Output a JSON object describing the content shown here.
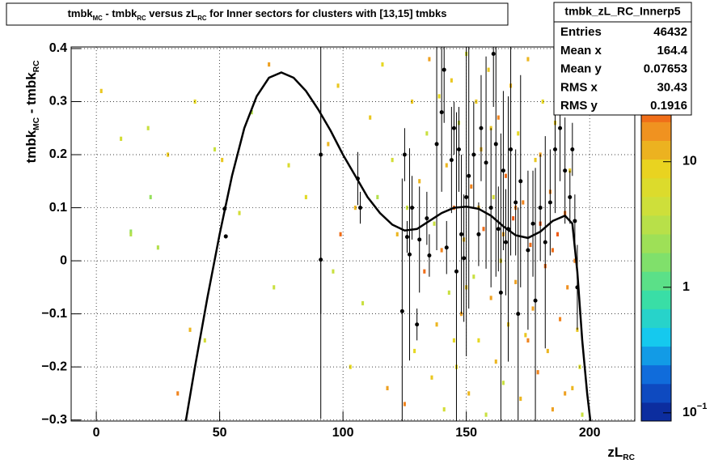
{
  "chart_data": {
    "type": "heatmap",
    "title_parts": [
      {
        "text": "tmbk"
      },
      {
        "sub": "MC"
      },
      {
        "text": " - tmbk"
      },
      {
        "sub": "RC"
      },
      {
        "text": " versus zL"
      },
      {
        "sub": "RC"
      },
      {
        "text": " for Inner sectors for clusters with [13,15] tmbks"
      }
    ],
    "x_label_parts": [
      {
        "text": "zL"
      },
      {
        "sub": "RC"
      }
    ],
    "y_label_parts": [
      {
        "text": "tmbk"
      },
      {
        "sub": "MC"
      },
      {
        "text": " - tmbk"
      },
      {
        "sub": "RC"
      }
    ],
    "xlim": [
      -10.2,
      218.3
    ],
    "xticks": [
      0,
      50,
      100,
      150,
      200
    ],
    "ylim": [
      -0.302,
      0.403
    ],
    "yticks": [
      {
        "value": -0.3,
        "label": "−0.3"
      },
      {
        "value": -0.2,
        "label": "−0.2"
      },
      {
        "value": -0.1,
        "label": "−0.1"
      },
      0,
      0.1,
      0.2,
      0.3,
      0.4
    ],
    "zlim": [
      0.086,
      82
    ],
    "zticks": [
      {
        "value": 0.1,
        "label": "10",
        "sup": "−1"
      },
      1,
      10
    ],
    "log_z": true,
    "grid": true,
    "palette": [
      "#0b1f8e",
      "#0f5fd8",
      "#14c8f0",
      "#3ce0a0",
      "#8ee060",
      "#c8e040",
      "#e8d820",
      "#f09020",
      "#f04010",
      "#e01010"
    ],
    "cells": [
      [
        2,
        0.32,
        10
      ],
      [
        10,
        0.23,
        5
      ],
      [
        14,
        0.055,
        2
      ],
      [
        14,
        0.05,
        3
      ],
      [
        21,
        0.25,
        4
      ],
      [
        22,
        0.12,
        2
      ],
      [
        25,
        0.025,
        3
      ],
      [
        29,
        0.2,
        10
      ],
      [
        33,
        -0.25,
        20
      ],
      [
        38,
        -0.13,
        12
      ],
      [
        40,
        0.3,
        8
      ],
      [
        44,
        -0.15,
        5
      ],
      [
        48,
        0.21,
        4
      ],
      [
        51,
        0.19,
        10
      ],
      [
        58,
        0.09,
        5
      ],
      [
        63,
        0.28,
        3
      ],
      [
        70,
        0.37,
        15
      ],
      [
        72,
        -0.05,
        4
      ],
      [
        78,
        0.18,
        6
      ],
      [
        85,
        0.12,
        7
      ],
      [
        94,
        0.22,
        12
      ],
      [
        96,
        -0.02,
        4
      ],
      [
        98,
        0.33,
        10
      ],
      [
        99,
        0.05,
        25
      ],
      [
        103,
        -0.2,
        8
      ],
      [
        105,
        0.1,
        12
      ],
      [
        108,
        -0.08,
        4
      ],
      [
        111,
        0.27,
        10
      ],
      [
        114,
        0.12,
        3
      ],
      [
        116,
        0.37,
        8
      ],
      [
        118,
        -0.24,
        15
      ],
      [
        120,
        0.19,
        5
      ],
      [
        122,
        0.05,
        12
      ],
      [
        125,
        -0.27,
        20
      ],
      [
        126,
        0.1,
        4
      ],
      [
        128,
        0.3,
        10
      ],
      [
        129,
        -0.17,
        8
      ],
      [
        131,
        0.15,
        12
      ],
      [
        133,
        -0.02,
        25
      ],
      [
        134,
        0.24,
        4
      ],
      [
        135,
        0.38,
        15
      ],
      [
        136,
        -0.22,
        10
      ],
      [
        137,
        0.07,
        4
      ],
      [
        138,
        -0.12,
        12
      ],
      [
        139,
        0.31,
        8
      ],
      [
        140,
        0.02,
        20
      ],
      [
        141,
        -0.28,
        5
      ],
      [
        142,
        0.18,
        12
      ],
      [
        143,
        -0.06,
        4
      ],
      [
        144,
        0.34,
        10
      ],
      [
        145,
        0.1,
        25
      ],
      [
        146,
        -0.2,
        8
      ],
      [
        147,
        0.26,
        4
      ],
      [
        148,
        -0.1,
        15
      ],
      [
        149,
        0.04,
        12
      ],
      [
        150,
        0.39,
        5
      ],
      [
        151,
        -0.25,
        12
      ],
      [
        152,
        0.14,
        20
      ],
      [
        153,
        -0.03,
        4
      ],
      [
        154,
        0.3,
        10
      ],
      [
        155,
        -0.15,
        8
      ],
      [
        156,
        0.21,
        12
      ],
      [
        157,
        0.06,
        25
      ],
      [
        158,
        -0.29,
        4
      ],
      [
        159,
        0.36,
        10
      ],
      [
        160,
        -0.07,
        15
      ],
      [
        161,
        0.12,
        5
      ],
      [
        162,
        -0.19,
        12
      ],
      [
        163,
        0.27,
        20
      ],
      [
        164,
        0.0,
        8
      ],
      [
        165,
        -0.23,
        4
      ],
      [
        166,
        0.16,
        25
      ],
      [
        167,
        -0.12,
        10
      ],
      [
        168,
        0.33,
        12
      ],
      [
        169,
        0.08,
        30
      ],
      [
        170,
        -0.04,
        15
      ],
      [
        171,
        0.24,
        8
      ],
      [
        172,
        -0.26,
        12
      ],
      [
        173,
        0.11,
        20
      ],
      [
        174,
        -0.14,
        10
      ],
      [
        175,
        0.38,
        12
      ],
      [
        176,
        0.03,
        25
      ],
      [
        177,
        -0.09,
        15
      ],
      [
        178,
        0.19,
        10
      ],
      [
        179,
        -0.21,
        20
      ],
      [
        180,
        0.07,
        30
      ],
      [
        181,
        0.3,
        8
      ],
      [
        182,
        -0.01,
        25
      ],
      [
        183,
        -0.17,
        12
      ],
      [
        184,
        0.13,
        20
      ],
      [
        185,
        -0.28,
        15
      ],
      [
        186,
        0.26,
        10
      ],
      [
        187,
        0.05,
        30
      ],
      [
        188,
        -0.11,
        20
      ],
      [
        189,
        0.35,
        12
      ],
      [
        190,
        0.09,
        25
      ],
      [
        191,
        -0.05,
        18
      ],
      [
        192,
        0.17,
        10
      ],
      [
        193,
        -0.24,
        12
      ],
      [
        194,
        0.0,
        20
      ],
      [
        195,
        -0.13,
        10
      ],
      [
        196,
        -0.2,
        6
      ],
      [
        197,
        -0.29,
        4
      ],
      [
        165,
        0.05,
        15
      ],
      [
        170,
        0.1,
        20
      ],
      [
        175,
        -0.15,
        20
      ],
      [
        180,
        0.2,
        15
      ],
      [
        185,
        0.02,
        25
      ],
      [
        160,
        0.25,
        10
      ],
      [
        155,
        0.1,
        12
      ],
      [
        150,
        -0.05,
        10
      ],
      [
        145,
        -0.15,
        8
      ],
      [
        190,
        -0.25,
        15
      ]
    ],
    "profile": {
      "color": "#000000",
      "points": [
        [
          52,
          0.098,
          0.005
        ],
        [
          52.5,
          0.046,
          0.004
        ],
        [
          91,
          0.2,
          0.3
        ],
        [
          91,
          0.002,
          0.3
        ],
        [
          106,
          0.155,
          0.05
        ],
        [
          107,
          0.1,
          0.03
        ],
        [
          124,
          -0.095,
          0.25
        ],
        [
          125,
          0.2,
          0.05
        ],
        [
          126,
          0.045,
          0.03
        ],
        [
          127,
          0.012,
          0.2
        ],
        [
          128,
          0.1,
          0.06
        ],
        [
          130,
          -0.12,
          0.03
        ],
        [
          131,
          0.04,
          0.1
        ],
        [
          134,
          0.08,
          0.05
        ],
        [
          135,
          0.01,
          0.04
        ],
        [
          138,
          0.22,
          0.2
        ],
        [
          140,
          0.28,
          0.15
        ],
        [
          141,
          0.36,
          0.1
        ],
        [
          142,
          0.025,
          0.05
        ],
        [
          144,
          0.19,
          0.1
        ],
        [
          145,
          0.25,
          0.05
        ],
        [
          146,
          -0.02,
          0.3
        ],
        [
          147,
          0.21,
          0.08
        ],
        [
          148,
          0.05,
          0.15
        ],
        [
          149,
          0.005,
          0.12
        ],
        [
          150,
          0.12,
          0.3
        ],
        [
          151,
          0.16,
          0.25
        ],
        [
          153,
          0.2,
          0.1
        ],
        [
          155,
          0.05,
          0.06
        ],
        [
          156,
          0.25,
          0.1
        ],
        [
          158,
          0.185,
          0.2
        ],
        [
          160,
          0.1,
          0.15
        ],
        [
          161,
          0.39,
          0.1
        ],
        [
          162,
          0.22,
          0.25
        ],
        [
          163,
          0.06,
          0.08
        ],
        [
          164,
          -0.06,
          0.3
        ],
        [
          165,
          0.17,
          0.15
        ],
        [
          166,
          0.035,
          0.1
        ],
        [
          167,
          0.06,
          0.25
        ],
        [
          168,
          0.21,
          0.2
        ],
        [
          170,
          0.11,
          0.1
        ],
        [
          171,
          -0.1,
          0.2
        ],
        [
          172,
          0.15,
          0.2
        ],
        [
          175,
          0.02,
          0.15
        ],
        [
          177,
          0.07,
          0.1
        ],
        [
          178,
          -0.075,
          0.25
        ],
        [
          180,
          0.1,
          0.1
        ],
        [
          182,
          0.035,
          0.2
        ],
        [
          184,
          0.11,
          0.1
        ],
        [
          186,
          0.21,
          0.12
        ],
        [
          188,
          0.25,
          0.1
        ],
        [
          190,
          0.17,
          0.1
        ],
        [
          191,
          0.38,
          0.05
        ],
        [
          192,
          0.12,
          0.05
        ],
        [
          193,
          0.21,
          0.05
        ],
        [
          194,
          0.075,
          0.05
        ],
        [
          195,
          -0.05,
          0.08
        ]
      ]
    },
    "fit": {
      "color": "#000000",
      "x": [
        36,
        40,
        45,
        50,
        55,
        60,
        65,
        70,
        75,
        80,
        85,
        90,
        95,
        100,
        105,
        110,
        115,
        120,
        125,
        130,
        135,
        140,
        145,
        150,
        155,
        160,
        165,
        170,
        175,
        180,
        185,
        190,
        193,
        195,
        197,
        199,
        200.5
      ],
      "y": [
        -0.31,
        -0.2,
        -0.07,
        0.05,
        0.16,
        0.25,
        0.31,
        0.345,
        0.355,
        0.345,
        0.32,
        0.285,
        0.245,
        0.2,
        0.16,
        0.12,
        0.09,
        0.068,
        0.057,
        0.06,
        0.075,
        0.09,
        0.1,
        0.102,
        0.098,
        0.085,
        0.065,
        0.048,
        0.043,
        0.055,
        0.075,
        0.085,
        0.07,
        -0.02,
        -0.15,
        -0.25,
        -0.31
      ]
    },
    "stats": {
      "name": "tmbk_zL_RC_Innerp5",
      "rows": [
        {
          "label": "Entries",
          "value": 46432
        },
        {
          "label": "Mean x",
          "value": 164.4
        },
        {
          "label": "Mean y",
          "value": 0.07653
        },
        {
          "label": "RMS x",
          "value": 30.43
        },
        {
          "label": "RMS y",
          "value": 0.1916
        }
      ]
    }
  }
}
